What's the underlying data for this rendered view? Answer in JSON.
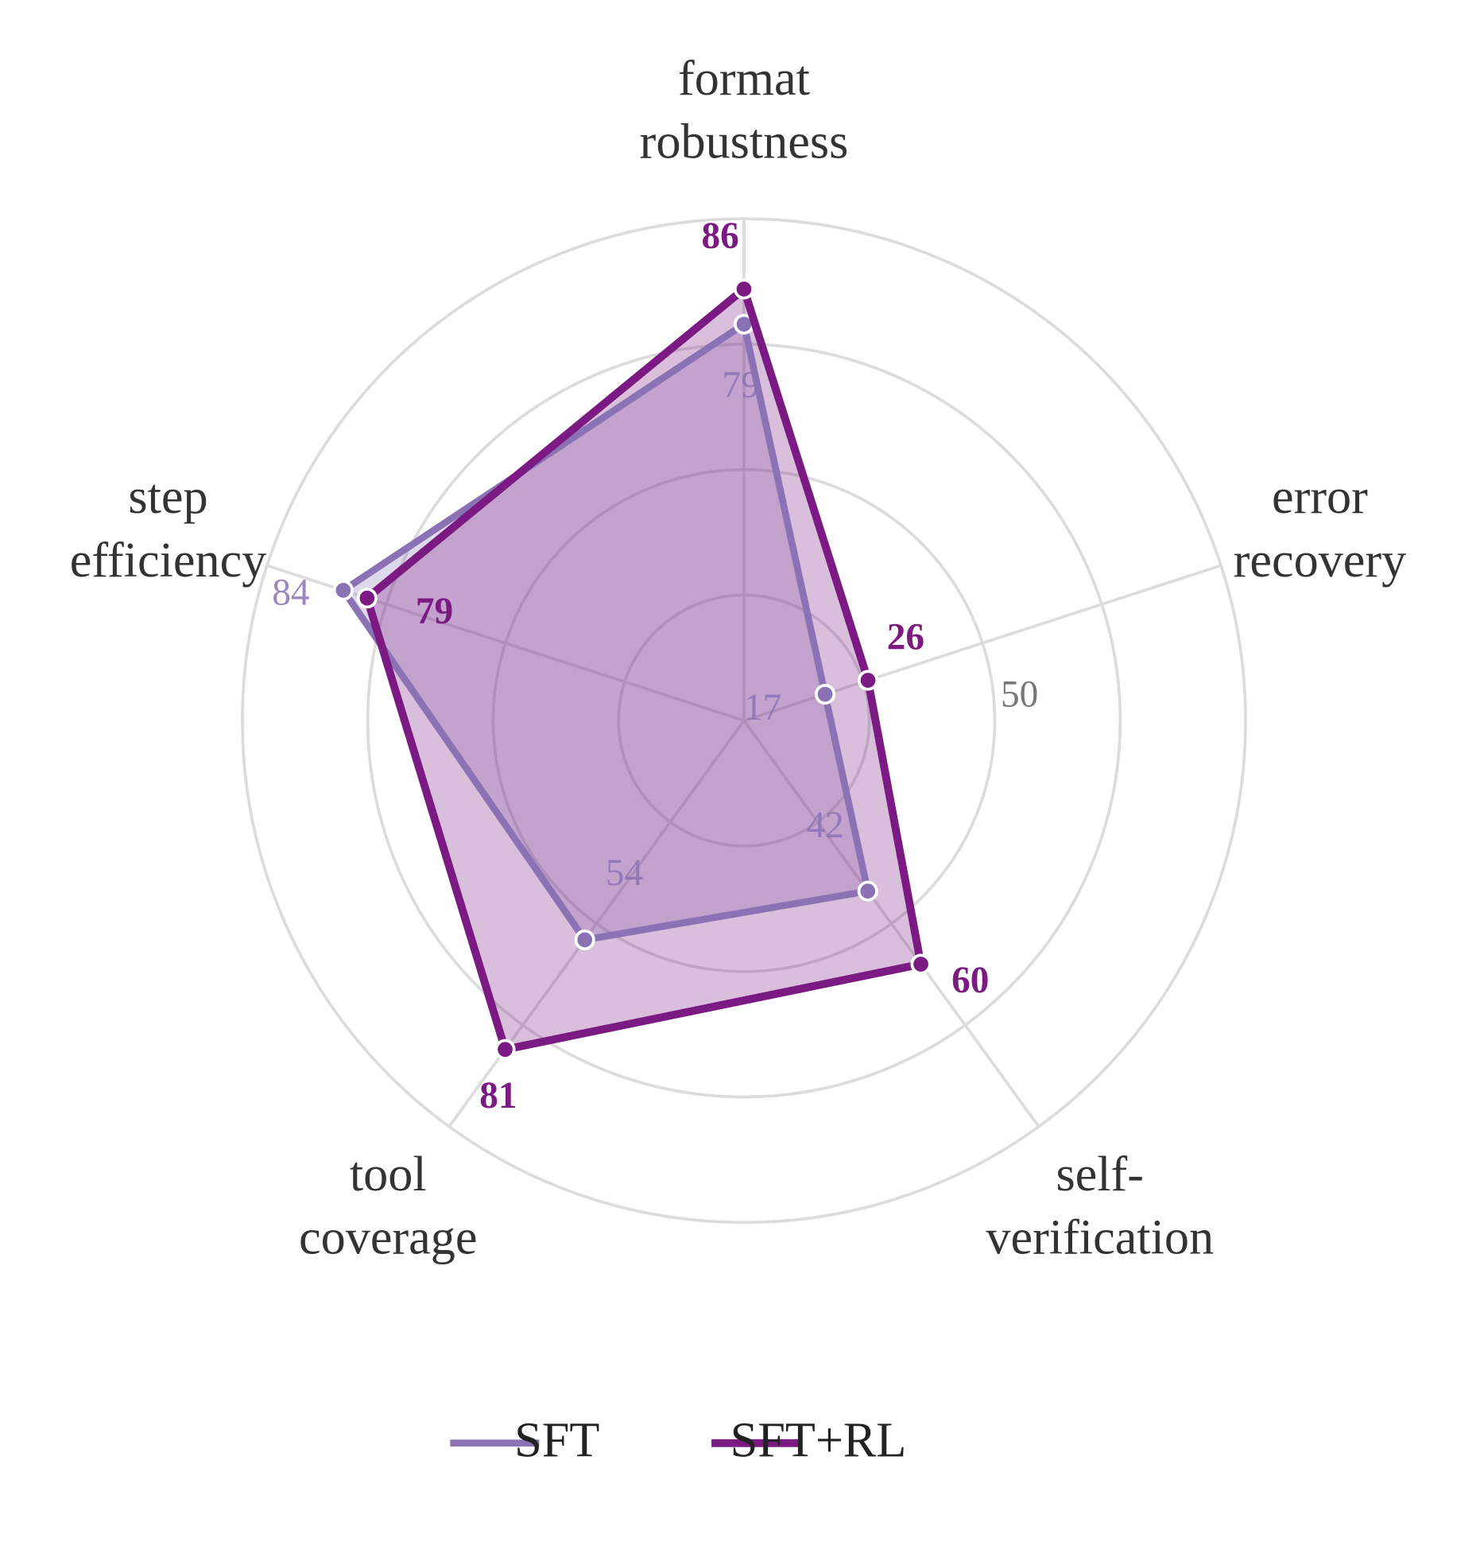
{
  "chart_data": {
    "type": "radar",
    "categories": [
      [
        "format",
        "robustness"
      ],
      [
        "error",
        "recovery"
      ],
      [
        "self-",
        "verification"
      ],
      [
        "tool",
        "coverage"
      ],
      [
        "step",
        "efficiency"
      ]
    ],
    "rlim": [
      0,
      100
    ],
    "rticks": [
      {
        "value": 25,
        "label": null
      },
      50,
      {
        "value": 75,
        "label": null
      },
      {
        "value": 100,
        "label": null
      }
    ],
    "grid": true,
    "legend": "bottom",
    "series": [
      {
        "name": "SFT",
        "color": "#8b72b5",
        "values": [
          79,
          17,
          42,
          54,
          84
        ]
      },
      {
        "name": "SFT+RL",
        "color": "#7b1a82",
        "values": [
          86,
          26,
          60,
          81,
          79
        ]
      }
    ]
  }
}
